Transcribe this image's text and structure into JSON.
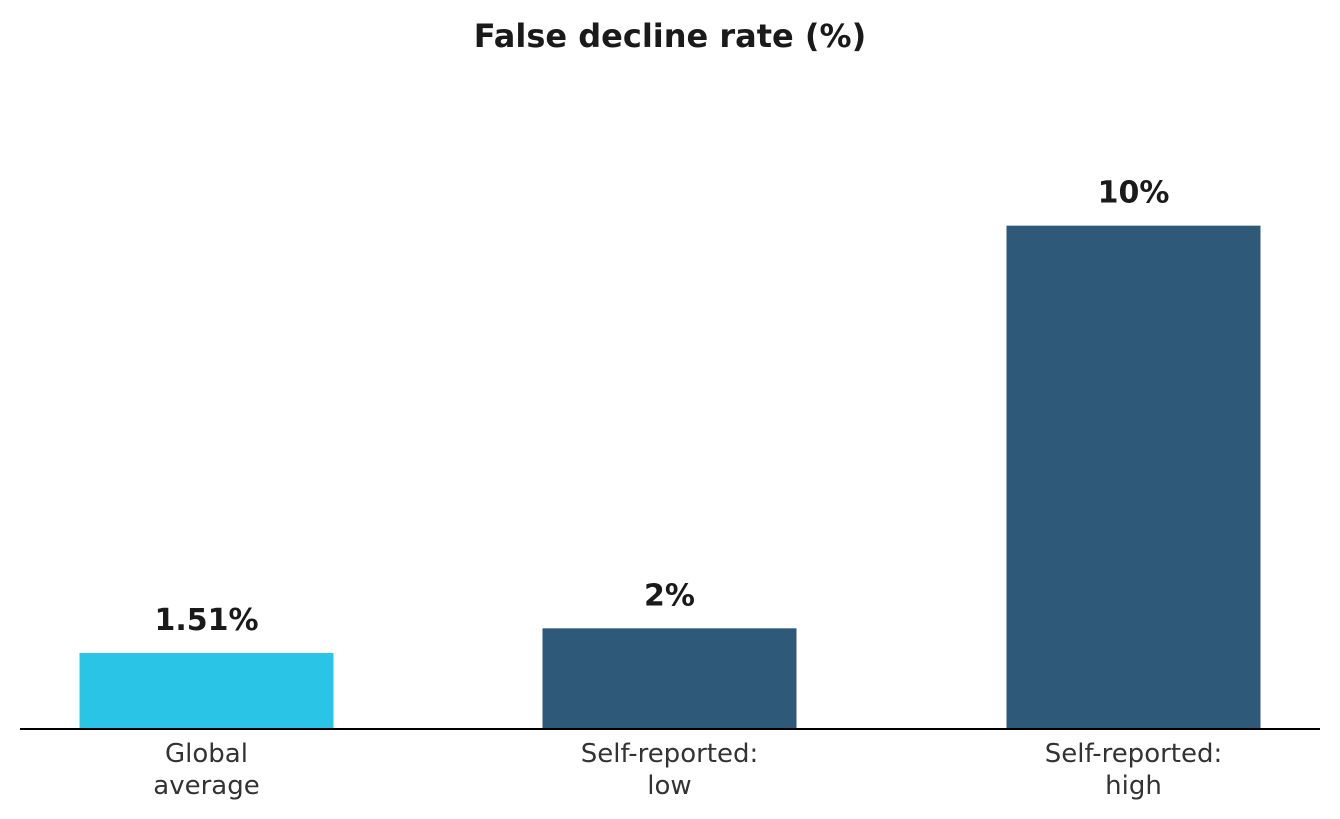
{
  "chart_data": {
    "type": "bar",
    "title": "False decline rate (%)",
    "xlabel": "",
    "ylabel": "",
    "ylim": [
      0,
      12
    ],
    "grid": false,
    "legend": "none",
    "categories": [
      [
        "Global",
        "average"
      ],
      [
        "Self-reported:",
        "low"
      ],
      [
        "Self-reported:",
        "high"
      ]
    ],
    "values": [
      1.51,
      2,
      10
    ],
    "value_labels": [
      "1.51%",
      "2%",
      "10%"
    ],
    "colors": [
      "#29c4e6",
      "#2e5978",
      "#2e5978"
    ],
    "axis_color": "#000000"
  }
}
